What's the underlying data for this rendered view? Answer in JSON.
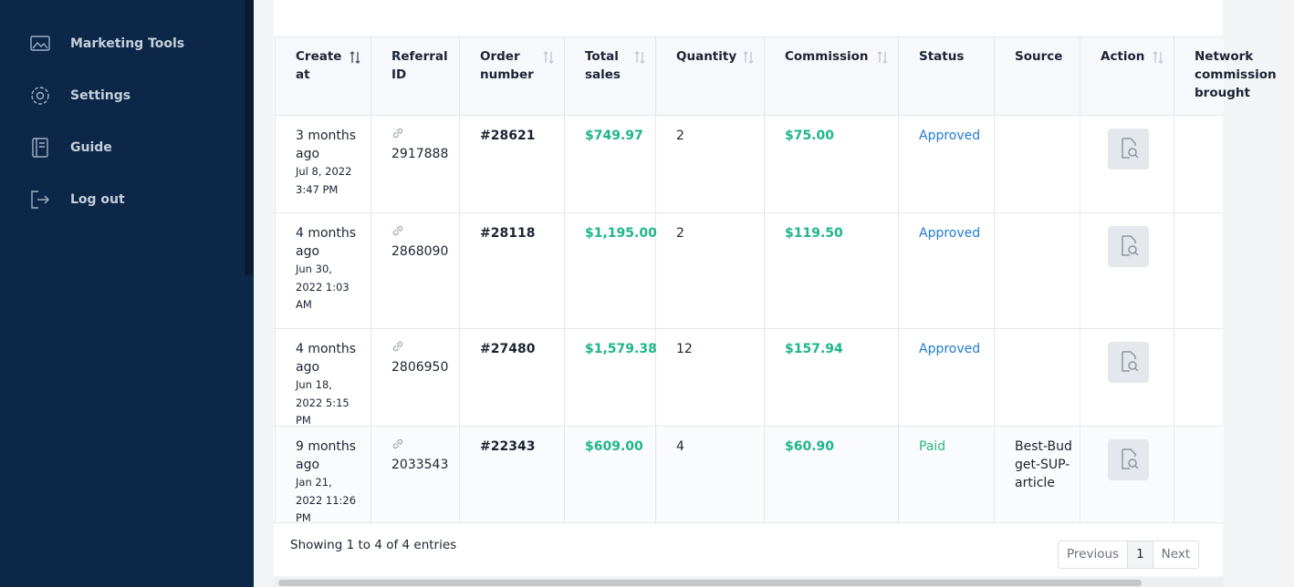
{
  "sidebar": {
    "items": [
      "Marketing Tools",
      "Settings",
      "Guide",
      "Log out"
    ]
  },
  "table": {
    "headers": [
      {
        "label": "Create at",
        "sortable": true
      },
      {
        "label": "Referral ID",
        "sortable": false
      },
      {
        "label": "Order number",
        "sortable": true
      },
      {
        "label": "Total sales",
        "sortable": true
      },
      {
        "label": "Quantity",
        "sortable": true
      },
      {
        "label": "Commission",
        "sortable": true
      },
      {
        "label": "Status",
        "sortable": false
      },
      {
        "label": "Source",
        "sortable": false
      },
      {
        "label": "Action",
        "sortable": true
      },
      {
        "label": "Network commission brought",
        "sortable": false
      }
    ],
    "rows": [
      {
        "created": "3 months ago",
        "date": "Jul 8, 2022 3:47 PM",
        "referral_id": "2917888",
        "order": "#28621",
        "total": "$749.97",
        "quantity": 2,
        "commission": "$75.00",
        "status": "Approved"
      },
      {
        "created": "4 months ago",
        "date": "Jun 30, 2022 1:03 AM",
        "referral_id": "2868090",
        "order": "#28118",
        "total": "$1,195.00",
        "quantity": 2,
        "commission": "$119.50",
        "status": "Approved"
      },
      {
        "created": "4 months ago",
        "date": "Jun 18, 2022 5:15 PM",
        "referral_id": "2806950",
        "order": "#27480",
        "total": "$1,579.38",
        "quantity": 12,
        "commission": "$157.94",
        "status": "Approved"
      },
      {
        "created": "9 months ago",
        "date": "Jan 21, 2022 11:26 PM",
        "referral_id": "2033543",
        "order": "#22343",
        "total": "$609.00",
        "quantity": 4,
        "commission": "$60.90",
        "status": "Paid",
        "source": "Best-Budget-SUP-article"
      }
    ]
  },
  "footer": {
    "info": "Showing 1 to 4 of 4 entries",
    "pagination": [
      "Previous",
      "1",
      "Next"
    ]
  }
}
